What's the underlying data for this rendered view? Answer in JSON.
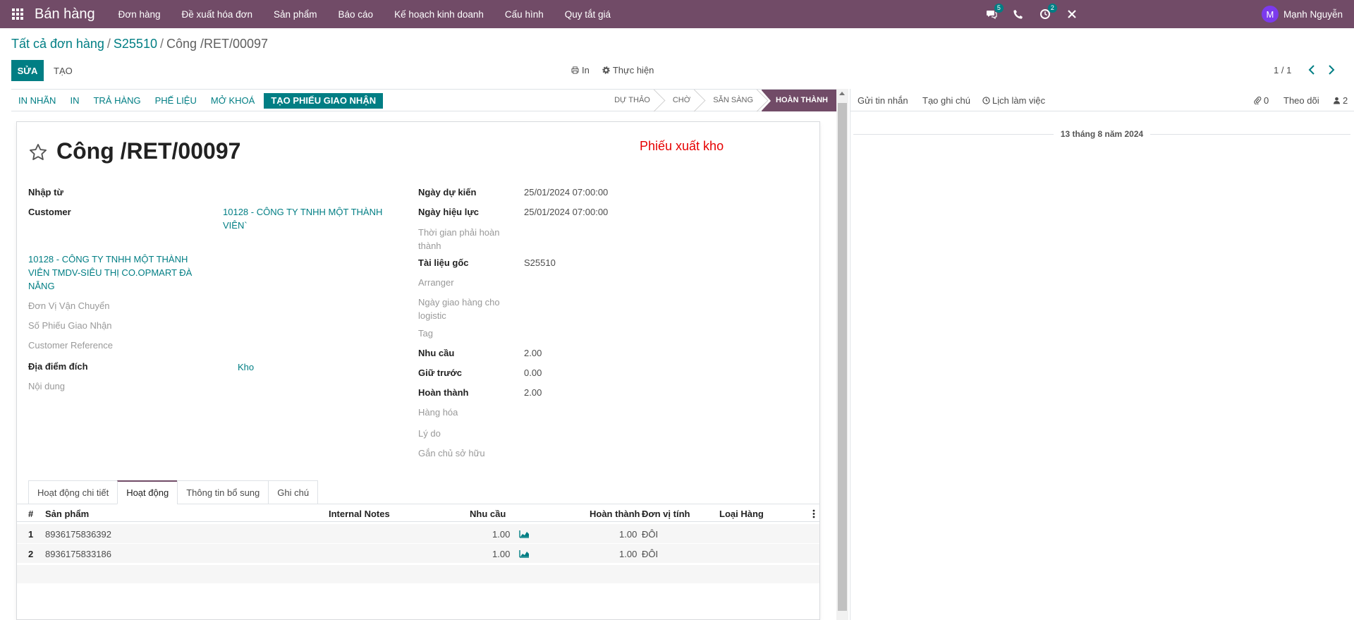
{
  "navbar": {
    "brand": "Bán hàng",
    "menu": [
      "Đơn hàng",
      "Đề xuất hóa đơn",
      "Sản phẩm",
      "Báo cáo",
      "Kế hoạch kinh doanh",
      "Cấu hình",
      "Quy tắt giá"
    ],
    "messages_badge": "5",
    "activities_badge": "2",
    "user_initial": "M",
    "user_name": "Mạnh Nguyễn"
  },
  "breadcrumb": {
    "root": "Tất cả đơn hàng",
    "order": "S25510",
    "current": "Công /RET/00097"
  },
  "control_panel": {
    "edit_label": "SỬA",
    "create_label": "TẠO",
    "print_label": "In",
    "action_label": "Thực hiện",
    "pager": "1 / 1"
  },
  "statusbar": {
    "buttons": [
      "IN NHÃN",
      "IN",
      "TRẢ HÀNG",
      "PHẾ LIỆU",
      "MỞ KHOÁ"
    ],
    "primary_button": "TẠO PHIẾU GIAO NHẬN",
    "stages": [
      "DỰ THẢO",
      "CHỜ",
      "SẴN SÀNG",
      "HOÀN THÀNH"
    ],
    "active_stage": "HOÀN THÀNH"
  },
  "form": {
    "title": "Công /RET/00097",
    "doc_type": "Phiếu xuất kho",
    "left": {
      "nhap_tu_label": "Nhập từ",
      "customer_label": "Customer",
      "customer_value_line1": "10128 - CÔNG TY TNHH MỘT THÀNH",
      "customer_value_line2": "VIÊN`",
      "address_line1": "10128 - CÔNG TY TNHH MỘT THÀNH",
      "address_line2": "VIÊN TMDV-SIÊU THỊ CO.OPMART ĐÀ",
      "address_line3": "NẴNG",
      "carrier_label": "Đơn Vị Vận Chuyển",
      "delivery_no_label": "Số Phiếu Giao Nhận",
      "customer_ref_label": "Customer Reference",
      "destination_label": "Địa điểm đích",
      "destination_value": "Kho",
      "content_label": "Nội dung"
    },
    "right": {
      "scheduled_label": "Ngày dự kiến",
      "scheduled_value": "25/01/2024 07:00:00",
      "effective_label": "Ngày hiệu lực",
      "effective_value": "25/01/2024 07:00:00",
      "deadline_label_line1": "Thời gian phải hoàn",
      "deadline_label_line2": "thành",
      "source_label": "Tài liệu gốc",
      "source_value": "S25510",
      "arranger_label": "Arranger",
      "logistic_label_line1": "Ngày giao hàng cho",
      "logistic_label_line2": "logistic",
      "tag_label": "Tag",
      "demand_label": "Nhu cầu",
      "demand_value": "2.00",
      "reserved_label": "Giữ trước",
      "reserved_value": "0.00",
      "done_label": "Hoàn thành",
      "done_value": "2.00",
      "goods_label": "Hàng hóa",
      "reason_label": "Lý do",
      "owner_label": "Gắn chủ sở hữu"
    }
  },
  "tabs": [
    "Hoạt động chi tiết",
    "Hoạt động",
    "Thông tin bổ sung",
    "Ghi chú"
  ],
  "table": {
    "headers": {
      "num": "#",
      "product": "Sản phẩm",
      "notes": "Internal Notes",
      "demand": "Nhu cầu",
      "done": "Hoàn thành",
      "uom": "Đơn vị tính",
      "type": "Loại Hàng"
    },
    "rows": [
      {
        "num": "1",
        "product": "8936175836392",
        "demand": "1.00",
        "done": "1.00",
        "uom": "ĐÔI"
      },
      {
        "num": "2",
        "product": "8936175833186",
        "demand": "1.00",
        "done": "1.00",
        "uom": "ĐÔI"
      }
    ]
  },
  "chatter": {
    "send_message": "Gửi tin nhắn",
    "log_note": "Tạo ghi chú",
    "schedule_activity": "Lịch làm việc",
    "attachments_count": "0",
    "follow_label": "Theo dõi",
    "followers_count": "2",
    "date_separator": "13 tháng 8 năm 2024"
  },
  "colors": {
    "navbar": "#714b67",
    "primary": "#017e84",
    "doc_type_red": "#e60000"
  }
}
